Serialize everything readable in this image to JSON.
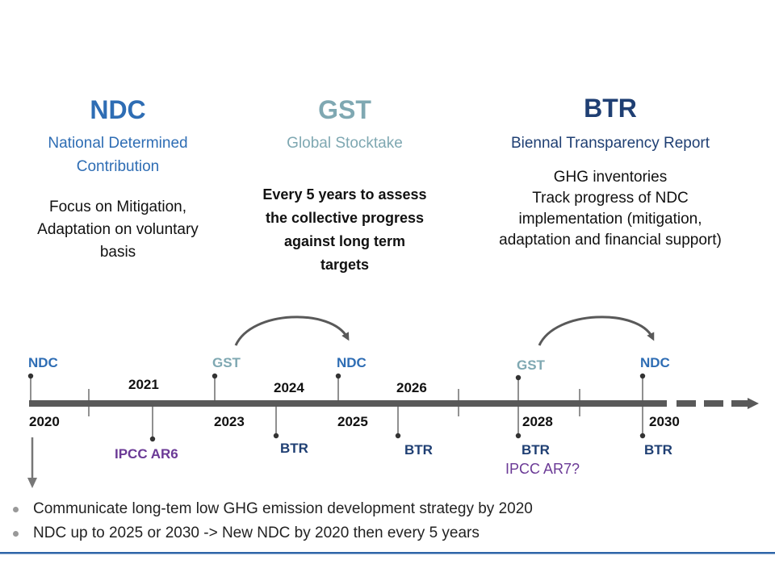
{
  "colors": {
    "ndc": "#2e6db4",
    "gst": "#7fa8b2",
    "btr": "#1f3f73",
    "ipcc": "#6b3a96",
    "axis": "#595959",
    "bottom_line": "#2e64a8"
  },
  "columns": {
    "ndc": {
      "acronym": "NDC",
      "subtitle_line1": "National Determined",
      "subtitle_line2": "Contribution",
      "desc_line1": "Focus on Mitigation,",
      "desc_line2": "Adaptation on voluntary",
      "desc_line3": "basis"
    },
    "gst": {
      "acronym": "GST",
      "subtitle": "Global Stocktake",
      "desc_line1": "Every 5 years to assess",
      "desc_line2": "the collective progress",
      "desc_line3": "against long term",
      "desc_line4": "targets"
    },
    "btr": {
      "acronym": "BTR",
      "subtitle": "Biennal Transparency Report",
      "desc_line1": "GHG inventories",
      "desc_line2": "Track progress of NDC",
      "desc_line3": "implementation (mitigation,",
      "desc_line4": "adaptation and financial support)"
    }
  },
  "timeline": {
    "above_labels": [
      "NDC",
      "GST",
      "NDC",
      "GST",
      "NDC"
    ],
    "above_years": [
      "2021",
      "2024",
      "2026"
    ],
    "below_years": [
      "2020",
      "2023",
      "2025",
      "2028",
      "2030"
    ],
    "below_labels": {
      "ipcc_ar6": "IPCC AR6",
      "btr_2024": "BTR",
      "btr_2026": "BTR",
      "btr_2028": "BTR",
      "ipcc_ar7": "IPCC AR7?",
      "btr_2030": "BTR"
    }
  },
  "bullets": [
    "Communicate long-tem low GHG emission development strategy by 2020",
    "NDC up to 2025 or 2030 -> New NDC by 2020 then every 5 years"
  ]
}
